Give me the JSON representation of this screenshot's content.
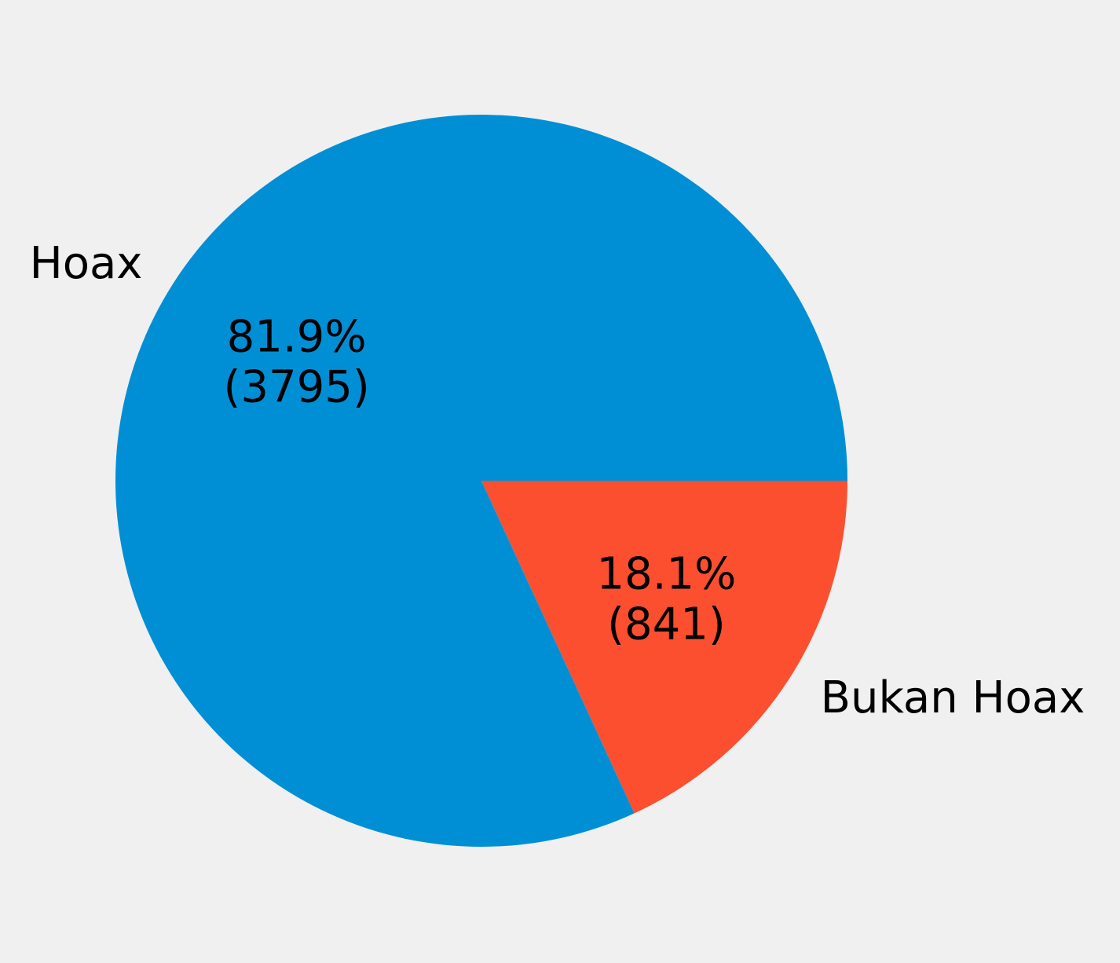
{
  "chart_data": {
    "type": "pie",
    "categories": [
      "Hoax",
      "Bukan Hoax"
    ],
    "values": [
      3795,
      841
    ],
    "percent_labels": [
      "81.9%",
      "18.1%"
    ],
    "count_labels": [
      "(3795)",
      "(841)"
    ],
    "colors": [
      "#008fd5",
      "#fc4f30"
    ],
    "start_angle_deg": 0,
    "direction": "counterclockwise",
    "background": "#f0f0f0"
  }
}
